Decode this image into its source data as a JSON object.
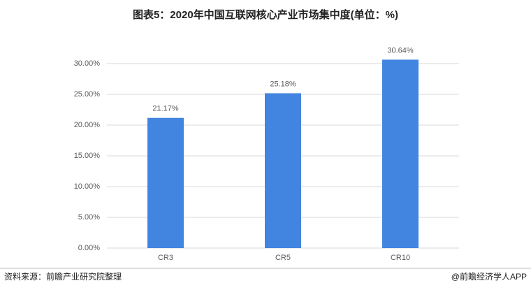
{
  "chart_data": {
    "type": "bar",
    "title": "图表5：2020年中国互联网核心产业市场集中度(单位：%)",
    "categories": [
      "CR3",
      "CR5",
      "CR10"
    ],
    "values": [
      21.17,
      25.18,
      30.64
    ],
    "value_labels": [
      "21.17%",
      "25.18%",
      "30.64%"
    ],
    "color": "#4285e0",
    "ylim": [
      0,
      30
    ],
    "yticks": [
      {
        "value": 0,
        "label": "0.00%"
      },
      {
        "value": 5,
        "label": "5.00%"
      },
      {
        "value": 10,
        "label": "10.00%"
      },
      {
        "value": 15,
        "label": "15.00%"
      },
      {
        "value": 20,
        "label": "20.00%"
      },
      {
        "value": 25,
        "label": "25.00%"
      },
      {
        "value": 30,
        "label": "30.00%"
      }
    ],
    "grid": true,
    "source": "资料来源：前瞻产业研究院整理",
    "brand": "@前瞻经济学人APP"
  }
}
